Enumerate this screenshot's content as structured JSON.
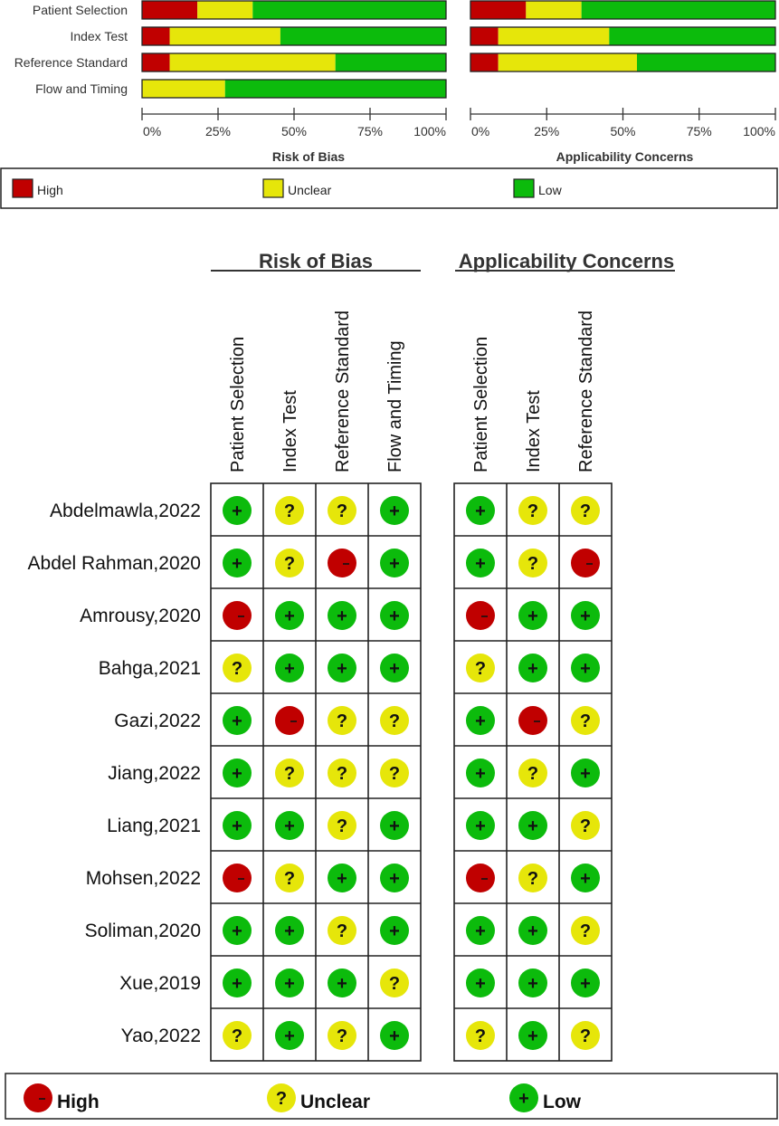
{
  "colors": {
    "high": "#c00000",
    "unclear": "#e6e60a",
    "low": "#0cbb0c",
    "bar_stroke": "#222222"
  },
  "chart_data": [
    {
      "type": "bar",
      "orientation": "horizontal",
      "stacked": true,
      "xlabel": "Risk of Bias",
      "categories": [
        "Patient Selection",
        "Index Test",
        "Reference Standard",
        "Flow and Timing"
      ],
      "x_ticks": [
        "0%",
        "25%",
        "50%",
        "75%",
        "100%"
      ],
      "xlim": [
        0,
        100
      ],
      "series": [
        {
          "name": "High",
          "values": [
            18.2,
            9.1,
            9.1,
            0
          ]
        },
        {
          "name": "Unclear",
          "values": [
            18.2,
            36.4,
            54.5,
            27.3
          ]
        },
        {
          "name": "Low",
          "values": [
            63.6,
            54.5,
            36.4,
            72.7
          ]
        }
      ]
    },
    {
      "type": "bar",
      "orientation": "horizontal",
      "stacked": true,
      "xlabel": "Applicability Concerns",
      "categories": [
        "Patient Selection",
        "Index Test",
        "Reference Standard"
      ],
      "x_ticks": [
        "0%",
        "25%",
        "50%",
        "75%",
        "100%"
      ],
      "xlim": [
        0,
        100
      ],
      "series": [
        {
          "name": "High",
          "values": [
            18.2,
            9.1,
            9.1
          ]
        },
        {
          "name": "Unclear",
          "values": [
            18.2,
            36.4,
            45.5
          ]
        },
        {
          "name": "Low",
          "values": [
            63.6,
            54.5,
            45.5
          ]
        }
      ]
    },
    {
      "type": "table",
      "sections": [
        {
          "title": "Risk of Bias",
          "columns": [
            "Patient Selection",
            "Index Test",
            "Reference Standard",
            "Flow and Timing"
          ]
        },
        {
          "title": "Applicability Concerns",
          "columns": [
            "Patient Selection",
            "Index Test",
            "Reference Standard"
          ]
        }
      ],
      "studies": [
        "Abdelmawla,2022",
        "Abdel Rahman,2020",
        "Amrousy,2020",
        "Bahga,2021",
        "Gazi,2022",
        "Jiang,2022",
        "Liang,2021",
        "Mohsen,2022",
        "Soliman,2020",
        "Xue,2019",
        "Yao,2022"
      ],
      "rob": [
        [
          "low",
          "unclear",
          "unclear",
          "low"
        ],
        [
          "low",
          "unclear",
          "high",
          "low"
        ],
        [
          "high",
          "low",
          "low",
          "low"
        ],
        [
          "unclear",
          "low",
          "low",
          "low"
        ],
        [
          "low",
          "high",
          "unclear",
          "unclear"
        ],
        [
          "low",
          "unclear",
          "unclear",
          "unclear"
        ],
        [
          "low",
          "low",
          "unclear",
          "low"
        ],
        [
          "high",
          "unclear",
          "low",
          "low"
        ],
        [
          "low",
          "low",
          "unclear",
          "low"
        ],
        [
          "low",
          "low",
          "low",
          "unclear"
        ],
        [
          "unclear",
          "low",
          "unclear",
          "low"
        ]
      ],
      "ac": [
        [
          "low",
          "unclear",
          "unclear"
        ],
        [
          "low",
          "unclear",
          "high"
        ],
        [
          "high",
          "low",
          "low"
        ],
        [
          "unclear",
          "low",
          "low"
        ],
        [
          "low",
          "high",
          "unclear"
        ],
        [
          "low",
          "unclear",
          "low"
        ],
        [
          "low",
          "low",
          "unclear"
        ],
        [
          "high",
          "unclear",
          "low"
        ],
        [
          "low",
          "low",
          "unclear"
        ],
        [
          "low",
          "low",
          "low"
        ],
        [
          "unclear",
          "low",
          "unclear"
        ]
      ]
    }
  ],
  "legend": [
    {
      "key": "high",
      "label": "High",
      "symbol": "–"
    },
    {
      "key": "unclear",
      "label": "Unclear",
      "symbol": "?"
    },
    {
      "key": "low",
      "label": "Low",
      "symbol": "+"
    }
  ]
}
